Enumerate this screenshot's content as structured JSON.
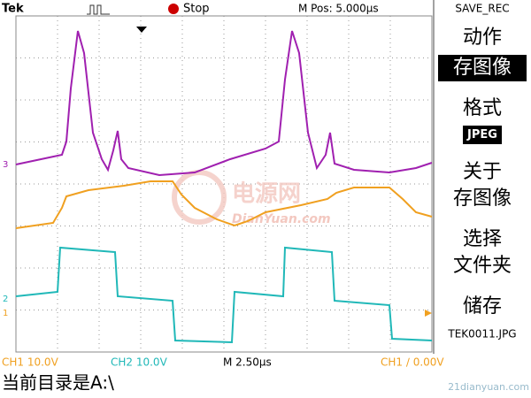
{
  "header": {
    "brand": "Tek",
    "run_state": "Stop",
    "position": "M Pos: 5.000µs"
  },
  "menu": {
    "title": "SAVE_REC",
    "items": [
      {
        "lines": [
          "动作"
        ]
      },
      {
        "lines": [
          "存图像"
        ],
        "selected": true
      },
      {
        "lines": [
          "格式"
        ]
      },
      {
        "lines": [
          "JPEG"
        ],
        "selected": true
      },
      {
        "lines": [
          "关于",
          "存图像"
        ]
      },
      {
        "lines": [
          "选择",
          "文件夹"
        ]
      },
      {
        "lines": [
          "储存"
        ]
      },
      {
        "lines": [
          "TEK0011.JPG"
        ]
      }
    ]
  },
  "channel_markers": [
    "3",
    "2",
    "1"
  ],
  "footer": {
    "ch1": "CH1  10.0V",
    "ch2": "CH2  10.0V",
    "timebase": "M 2.50µs",
    "trigger": "CH1 ∕ 0.00V"
  },
  "status": "当前目录是A:\\",
  "watermark": {
    "main": "电源网",
    "sub": "DianYuan.com",
    "corner": "21dianyuan.com"
  }
}
